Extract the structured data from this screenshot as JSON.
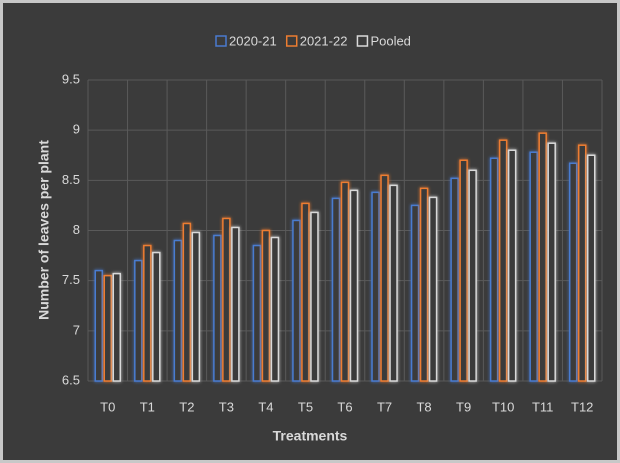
{
  "chart_data": {
    "type": "bar",
    "y_label": "Number of leaves per plant",
    "x_label": "Treatments",
    "categories": [
      "T0",
      "T1",
      "T2",
      "T3",
      "T4",
      "T5",
      "T6",
      "T7",
      "T8",
      "T9",
      "T10",
      "T11",
      "T12"
    ],
    "series": [
      {
        "name": "2020-21",
        "color": "#4a7bd0",
        "values": [
          7.6,
          7.7,
          7.9,
          7.95,
          7.85,
          8.1,
          8.32,
          8.38,
          8.25,
          8.52,
          8.72,
          8.78,
          8.67
        ]
      },
      {
        "name": "2021-22",
        "color": "#ed7d31",
        "values": [
          7.55,
          7.85,
          8.07,
          8.12,
          8.0,
          8.27,
          8.48,
          8.55,
          8.42,
          8.7,
          8.9,
          8.97,
          8.85
        ]
      },
      {
        "name": "Pooled",
        "color": "#d9d9d9",
        "values": [
          7.57,
          7.78,
          7.98,
          8.03,
          7.93,
          8.18,
          8.4,
          8.45,
          8.33,
          8.6,
          8.8,
          8.87,
          8.75
        ]
      }
    ],
    "ylim": [
      6.5,
      9.5
    ],
    "yticks": [
      6.5,
      7,
      7.5,
      8,
      8.5,
      9,
      9.5
    ],
    "grid": true
  }
}
